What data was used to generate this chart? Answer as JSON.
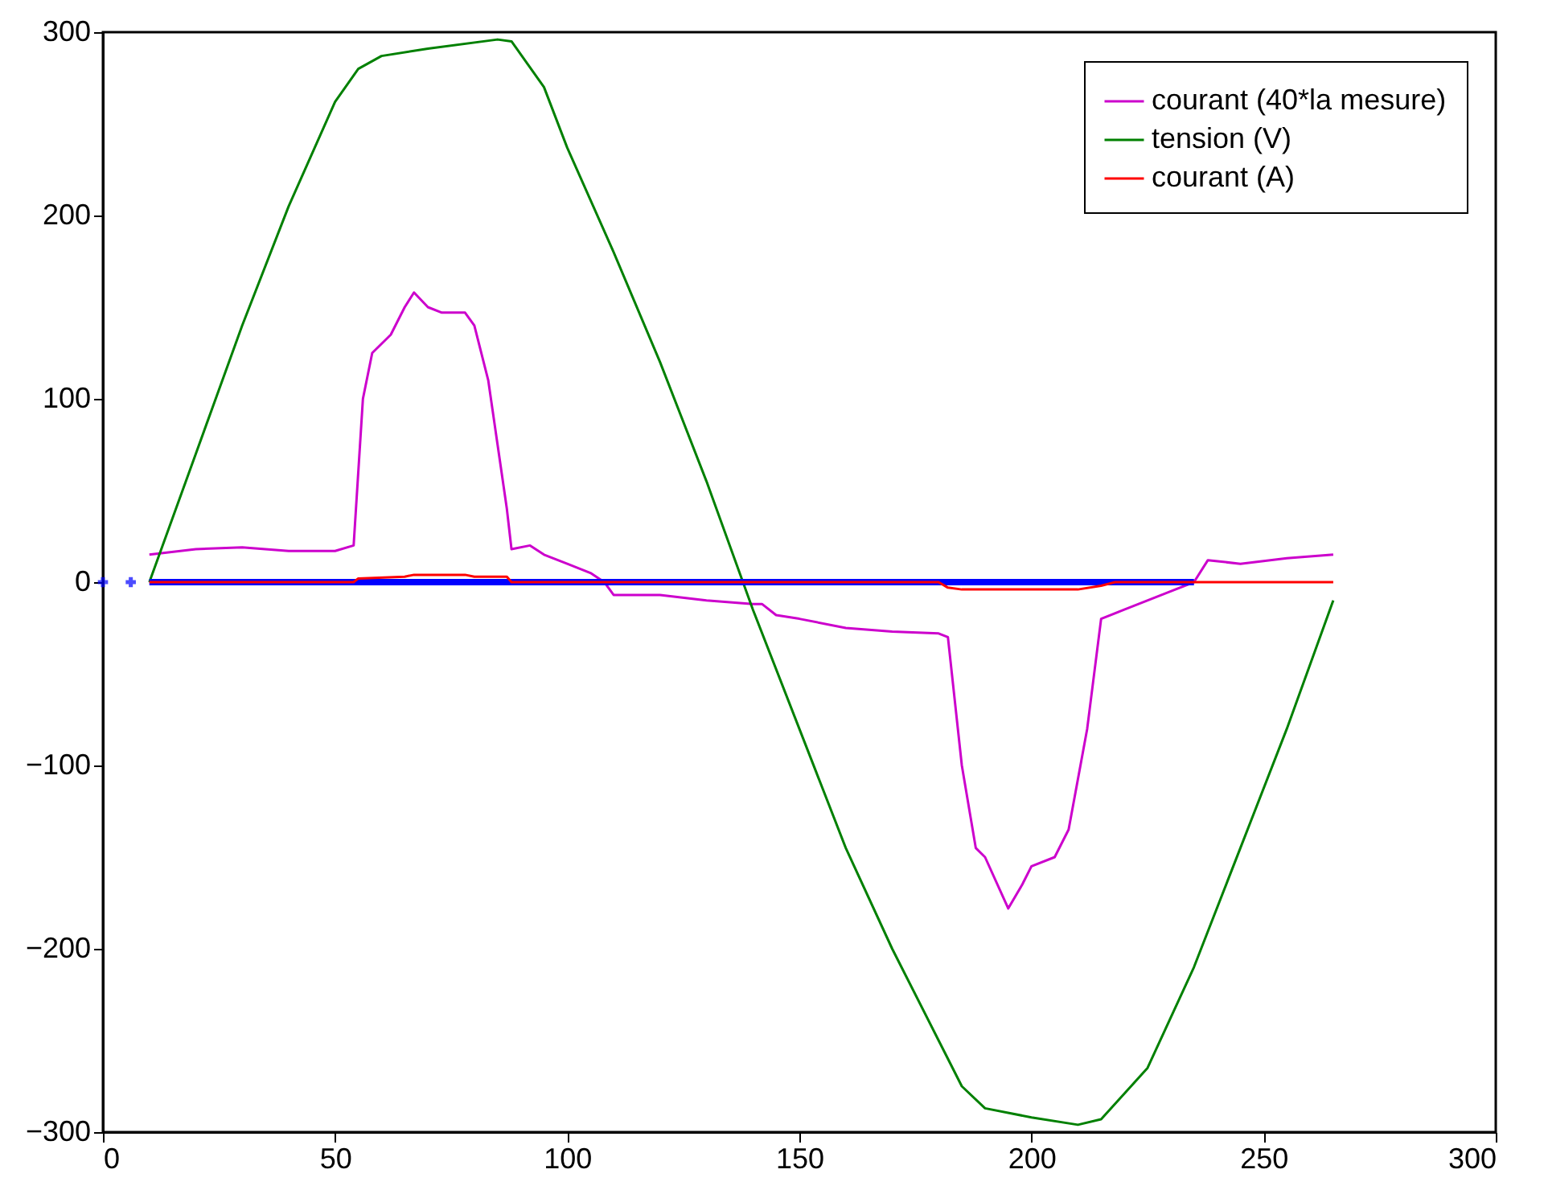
{
  "chart_data": {
    "type": "line",
    "xlim": [
      0,
      300
    ],
    "ylim": [
      -300,
      300
    ],
    "xticks": [
      0,
      50,
      100,
      150,
      200,
      250,
      300
    ],
    "yticks": [
      -300,
      -200,
      -100,
      0,
      100,
      200,
      300
    ],
    "grid": false,
    "legend": "top right",
    "series": [
      {
        "name": "courant (40*la mesure)",
        "color": "#cc00cc",
        "x": [
          10,
          20,
          30,
          40,
          50,
          54,
          56,
          58,
          62,
          65,
          67,
          70,
          73,
          78,
          80,
          83,
          85,
          87,
          88,
          92,
          95,
          100,
          105,
          108,
          110,
          120,
          130,
          140,
          142,
          145,
          150,
          160,
          170,
          180,
          182,
          185,
          188,
          190,
          195,
          198,
          200,
          205,
          208,
          212,
          215,
          220,
          230,
          235,
          238,
          245,
          255,
          265
        ],
        "values": [
          15,
          18,
          19,
          17,
          17,
          20,
          100,
          125,
          135,
          150,
          158,
          150,
          147,
          147,
          140,
          110,
          75,
          40,
          18,
          20,
          15,
          10,
          5,
          0,
          -7,
          -7,
          -10,
          -12,
          -12,
          -18,
          -20,
          -25,
          -27,
          -28,
          -30,
          -100,
          -145,
          -150,
          -178,
          -165,
          -155,
          -150,
          -135,
          -80,
          -20,
          -15,
          -5,
          0,
          12,
          10,
          13,
          15
        ]
      },
      {
        "name": "tension (V)",
        "color": "#008000",
        "x": [
          10,
          20,
          30,
          40,
          50,
          55,
          60,
          70,
          85,
          88,
          95,
          100,
          110,
          120,
          130,
          140,
          150,
          160,
          170,
          180,
          185,
          190,
          200,
          210,
          215,
          225,
          235,
          245,
          255,
          265
        ],
        "values": [
          0,
          70,
          140,
          205,
          262,
          280,
          287,
          291,
          296,
          295,
          270,
          237,
          180,
          120,
          55,
          -15,
          -80,
          -145,
          -200,
          -250,
          -275,
          -287,
          -292,
          -296,
          -293,
          -265,
          -210,
          -145,
          -80,
          -10
        ]
      },
      {
        "color": "#0000ff",
        "x": [
          10,
          235
        ],
        "values": [
          0,
          0
        ]
      },
      {
        "type": "scatter",
        "marker": "cross",
        "color": "#0000ff",
        "x": [
          0,
          6
        ],
        "values": [
          0,
          0
        ]
      },
      {
        "name": "courant (A)",
        "color": "#ff0000",
        "x": [
          10,
          54,
          55,
          65,
          67,
          78,
          80,
          87,
          88,
          180,
          182,
          185,
          210,
          215,
          218,
          265
        ],
        "values": [
          0,
          0,
          2,
          3,
          4,
          4,
          3,
          3,
          0,
          0,
          -3,
          -4,
          -4,
          -2,
          0,
          0
        ]
      }
    ]
  }
}
